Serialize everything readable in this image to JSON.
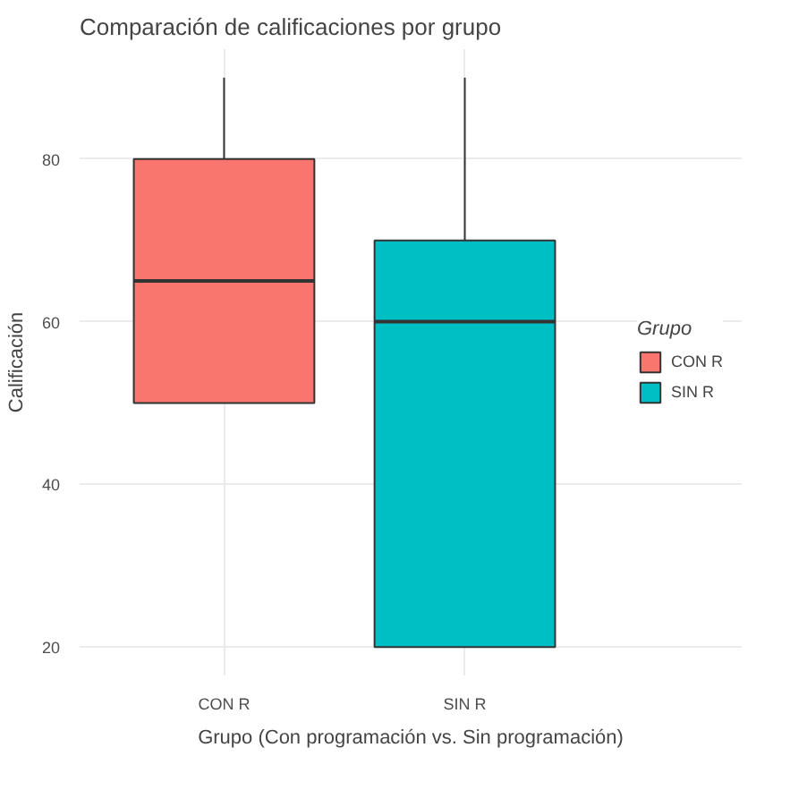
{
  "chart_data": {
    "type": "box",
    "title": "Comparación de calificaciones por grupo",
    "xlabel": "Grupo (Con programación vs. Sin programación)",
    "ylabel": "Calificación",
    "legend_title": "Grupo",
    "categories": [
      "CON R",
      "SIN R"
    ],
    "series": [
      {
        "name": "CON R",
        "color": "#f8766d",
        "boxes": [
          {
            "low": 50,
            "q1": 50,
            "median": 65,
            "q3": 80,
            "high": 90
          },
          null
        ]
      },
      {
        "name": "SIN R",
        "color": "#00bfc4",
        "boxes": [
          null,
          {
            "low": 20,
            "q1": 20,
            "median": 60,
            "q3": 70,
            "high": 90
          }
        ]
      }
    ],
    "ylim": [
      16.5,
      93.5
    ],
    "yticks": [
      20,
      40,
      60,
      80
    ],
    "grid": true,
    "legend": "right"
  }
}
